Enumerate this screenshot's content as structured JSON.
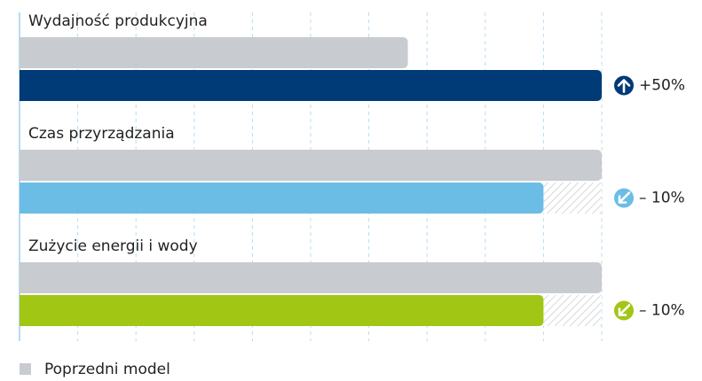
{
  "chart_data": {
    "type": "bar",
    "categories": [
      "Wydajność produkcyjna",
      "Czas przyrządzania",
      "Zużycie energii i wody"
    ],
    "series": [
      {
        "name": "Poprzedni model",
        "color": "#c8cbcf",
        "values": [
          66.7,
          100,
          100
        ]
      },
      {
        "colors": [
          "#003b77",
          "#6bbde6",
          "#a2c614"
        ],
        "values": [
          100,
          90,
          90
        ]
      }
    ],
    "changes": [
      50,
      -10,
      -10
    ],
    "change_labels": [
      "+50%",
      "– 10%",
      "– 10%"
    ],
    "xlim": [
      0,
      100
    ],
    "xticks": [
      0,
      10,
      20,
      30,
      40,
      50,
      60,
      70,
      80,
      90,
      100
    ],
    "grid": true
  }
}
